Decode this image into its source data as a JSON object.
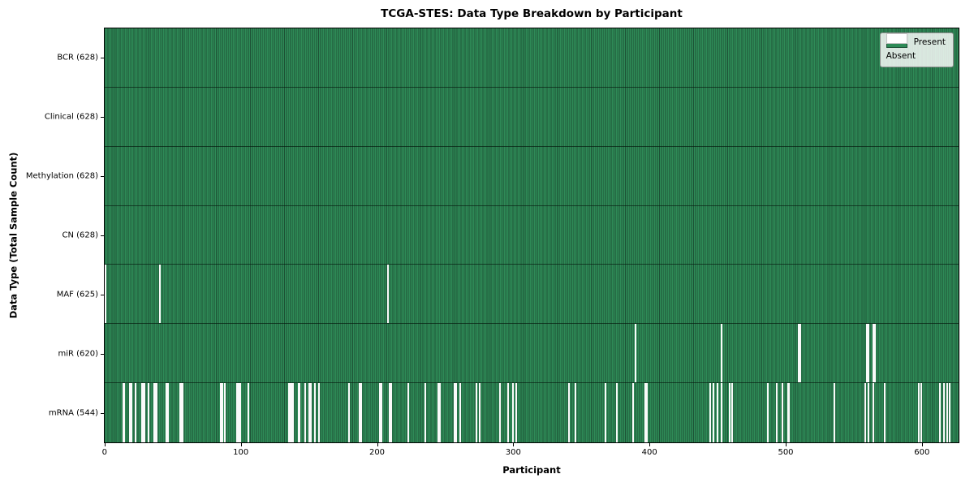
{
  "chart_data": {
    "type": "heatmap",
    "title": "TCGA-STES: Data Type Breakdown by Participant",
    "xlabel": "Participant",
    "ylabel": "Data Type (Total Sample Count)",
    "n_participants": 628,
    "x_ticks": [
      0,
      100,
      200,
      300,
      400,
      500,
      600
    ],
    "legend": [
      {
        "label": "Present",
        "color": "#2e8b57"
      },
      {
        "label": "Absent",
        "color": "#ffffff"
      }
    ],
    "colors": {
      "present": "#2e8b57",
      "present_stripe": "#1d5135",
      "absent": "#fafafa",
      "row_separator": "#0a1f12"
    },
    "rows": [
      {
        "data_type": "BCR",
        "label": "BCR (628)",
        "present_count": 628,
        "absent_indices": []
      },
      {
        "data_type": "Clinical",
        "label": "Clinical (628)",
        "present_count": 628,
        "absent_indices": []
      },
      {
        "data_type": "Methylation",
        "label": "Methylation (628)",
        "present_count": 628,
        "absent_indices": []
      },
      {
        "data_type": "CN",
        "label": "CN (628)",
        "present_count": 628,
        "absent_indices": []
      },
      {
        "data_type": "MAF",
        "label": "MAF (625)",
        "present_count": 625,
        "absent_indices": [
          0,
          40,
          208
        ]
      },
      {
        "data_type": "miR",
        "label": "miR (620)",
        "present_count": 620,
        "absent_indices": [
          390,
          453,
          510,
          511,
          560,
          561,
          565,
          566
        ]
      },
      {
        "data_type": "mRNA",
        "label": "mRNA (544)",
        "present_count": 544,
        "absent_indices": [
          13,
          14,
          18,
          19,
          22,
          27,
          28,
          29,
          32,
          36,
          37,
          38,
          45,
          46,
          55,
          56,
          57,
          85,
          86,
          88,
          97,
          98,
          99,
          105,
          135,
          136,
          137,
          138,
          142,
          143,
          147,
          150,
          151,
          154,
          157,
          179,
          187,
          188,
          202,
          203,
          209,
          210,
          223,
          235,
          245,
          246,
          257,
          258,
          261,
          273,
          275,
          290,
          296,
          300,
          302,
          341,
          346,
          368,
          376,
          388,
          397,
          398,
          445,
          447,
          450,
          453,
          459,
          461,
          487,
          494,
          498,
          502,
          503,
          536,
          559,
          561,
          565,
          573,
          598,
          600,
          614,
          617,
          619,
          621
        ]
      }
    ]
  }
}
